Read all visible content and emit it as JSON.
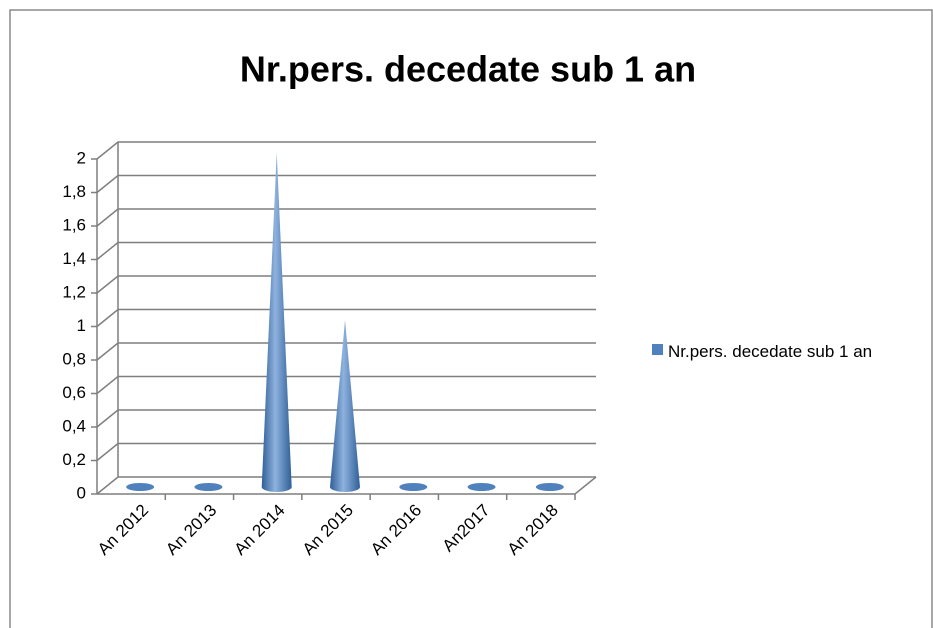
{
  "chart_data": {
    "type": "cone",
    "title": "Nr.pers. decedate sub 1 an",
    "categories": [
      "An 2012",
      "An 2013",
      "An 2014",
      "An 2015",
      "An 2016",
      "An2017",
      "An 2018"
    ],
    "series": [
      {
        "name": "Nr.pers. decedate sub 1 an",
        "color": "#4f81bd",
        "values": [
          0,
          0,
          2,
          1,
          0,
          0,
          0
        ]
      }
    ],
    "ylim": [
      0,
      2
    ],
    "yticks": [
      0,
      {
        "value": 0.2,
        "label": "0,2"
      },
      {
        "value": 0.4,
        "label": "0,4"
      },
      {
        "value": 0.6,
        "label": "0,6"
      },
      {
        "value": 0.8,
        "label": "0,8"
      },
      1,
      {
        "value": 1.2,
        "label": "1,2"
      },
      {
        "value": 1.4,
        "label": "1,4"
      },
      {
        "value": 1.6,
        "label": "1,6"
      },
      {
        "value": 1.8,
        "label": "1,8"
      },
      2
    ],
    "grid": true,
    "legend": "right"
  }
}
